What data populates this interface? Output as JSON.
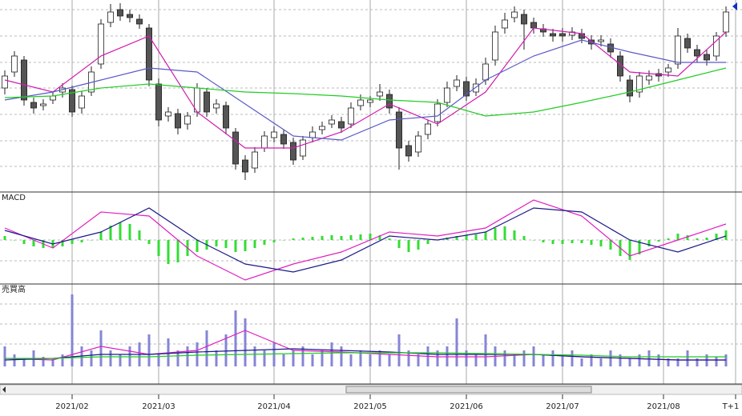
{
  "chart_data": [
    {
      "type": "candlestick",
      "xlim": [
        -0.5,
        76.5
      ],
      "ylim": [
        0,
        240
      ],
      "open": [
        130,
        150,
        165,
        112,
        108,
        115,
        125,
        128,
        105,
        125,
        160,
        212,
        228,
        222,
        216,
        205,
        135,
        95,
        98,
        85,
        100,
        125,
        105,
        108,
        75,
        40,
        30,
        55,
        68,
        72,
        62,
        45,
        68,
        78,
        85,
        88,
        85,
        108,
        112,
        120,
        122,
        100,
        58,
        50,
        72,
        88,
        112,
        132,
        138,
        125,
        140,
        165,
        205,
        218,
        222,
        212,
        204,
        198,
        198,
        196,
        198,
        190,
        188,
        185,
        170,
        140,
        125,
        140,
        148,
        150,
        160,
        192,
        178,
        172,
        170,
        200
      ],
      "high": [
        152,
        176,
        170,
        118,
        116,
        126,
        136,
        133,
        126,
        157,
        216,
        235,
        236,
        228,
        222,
        210,
        142,
        106,
        104,
        100,
        136,
        130,
        116,
        113,
        80,
        46,
        56,
        76,
        82,
        78,
        68,
        70,
        82,
        88,
        96,
        94,
        112,
        122,
        120,
        135,
        128,
        106,
        64,
        76,
        90,
        116,
        138,
        146,
        144,
        142,
        168,
        208,
        224,
        232,
        228,
        218,
        210,
        204,
        205,
        206,
        204,
        196,
        196,
        192,
        176,
        146,
        150,
        152,
        154,
        160,
        205,
        198,
        184,
        178,
        200,
        232
      ],
      "low": [
        122,
        144,
        108,
        98,
        102,
        110,
        118,
        94,
        98,
        120,
        154,
        206,
        214,
        212,
        204,
        132,
        82,
        88,
        72,
        78,
        94,
        94,
        98,
        72,
        28,
        15,
        24,
        50,
        62,
        54,
        34,
        40,
        62,
        72,
        80,
        74,
        80,
        102,
        106,
        114,
        98,
        28,
        38,
        44,
        66,
        82,
        106,
        126,
        114,
        120,
        134,
        158,
        198,
        212,
        178,
        198,
        194,
        188,
        188,
        190,
        186,
        178,
        182,
        168,
        138,
        112,
        118,
        134,
        138,
        144,
        154,
        174,
        162,
        158,
        164,
        194
      ],
      "close": [
        145,
        170,
        115,
        105,
        110,
        120,
        130,
        100,
        120,
        150,
        210,
        225,
        220,
        218,
        210,
        140,
        90,
        100,
        80,
        95,
        130,
        100,
        110,
        80,
        35,
        25,
        50,
        70,
        75,
        60,
        40,
        65,
        75,
        82,
        90,
        80,
        105,
        115,
        115,
        125,
        105,
        55,
        45,
        70,
        85,
        110,
        130,
        140,
        120,
        135,
        160,
        200,
        215,
        225,
        210,
        205,
        200,
        195,
        195,
        200,
        192,
        185,
        190,
        175,
        145,
        120,
        145,
        145,
        145,
        155,
        195,
        180,
        170,
        165,
        195,
        225
      ],
      "series": [
        {
          "color": "#d01cb0",
          "x": [
            0,
            5,
            10,
            15,
            20,
            25,
            30,
            35,
            40,
            45,
            50,
            55,
            60,
            65,
            70,
            75
          ],
          "values": [
            140,
            125,
            170,
            195,
            100,
            55,
            55,
            75,
            110,
            85,
            125,
            205,
            198,
            150,
            145,
            200
          ]
        },
        {
          "color": "#5a5ac8",
          "x": [
            0,
            5,
            10,
            15,
            20,
            25,
            30,
            35,
            40,
            45,
            50,
            55,
            60,
            65,
            70,
            75
          ],
          "values": [
            115,
            125,
            140,
            155,
            150,
            110,
            70,
            65,
            90,
            95,
            140,
            170,
            190,
            175,
            162,
            162
          ]
        },
        {
          "color": "#22cc22",
          "x": [
            0,
            5,
            10,
            15,
            20,
            25,
            30,
            35,
            40,
            45,
            50,
            55,
            60,
            65,
            70,
            75
          ],
          "values": [
            118,
            120,
            130,
            135,
            130,
            125,
            123,
            120,
            115,
            112,
            95,
            100,
            112,
            125,
            140,
            155
          ]
        }
      ]
    },
    {
      "type": "combo",
      "title": "MACD",
      "xlim": [
        -0.5,
        76.5
      ],
      "ylim": [
        -55,
        60
      ],
      "bars": {
        "color": "#33dd33",
        "values": [
          5,
          0,
          -5,
          -8,
          -10,
          -10,
          -8,
          -5,
          -3,
          0,
          10,
          18,
          22,
          20,
          12,
          -5,
          -20,
          -30,
          -28,
          -20,
          -15,
          -12,
          -8,
          -10,
          -15,
          -14,
          -10,
          -6,
          -3,
          0,
          2,
          3,
          4,
          5,
          6,
          5,
          6,
          7,
          8,
          6,
          2,
          -10,
          -15,
          -12,
          -5,
          0,
          3,
          5,
          6,
          7,
          10,
          15,
          17,
          12,
          5,
          0,
          -3,
          -5,
          -5,
          -4,
          -4,
          -6,
          -8,
          -12,
          -20,
          -25,
          -18,
          -8,
          -2,
          2,
          8,
          6,
          2,
          3,
          8,
          12
        ]
      },
      "series": [
        {
          "color": "#e020c0",
          "x": [
            0,
            5,
            10,
            15,
            20,
            25,
            30,
            35,
            40,
            45,
            50,
            55,
            60,
            65,
            70,
            75
          ],
          "values": [
            15,
            -10,
            35,
            30,
            -20,
            -50,
            -30,
            -15,
            10,
            5,
            15,
            50,
            30,
            -20,
            0,
            20
          ]
        },
        {
          "color": "#1a1a8a",
          "x": [
            0,
            5,
            10,
            15,
            20,
            25,
            30,
            35,
            40,
            45,
            50,
            55,
            60,
            65,
            70,
            75
          ],
          "values": [
            12,
            -5,
            10,
            40,
            0,
            -30,
            -40,
            -25,
            5,
            0,
            10,
            40,
            35,
            0,
            -15,
            5
          ]
        }
      ]
    },
    {
      "type": "combo",
      "title": "売買高",
      "xlim": [
        -0.5,
        76.5
      ],
      "ylim": [
        0,
        110
      ],
      "bars": {
        "color": "#8585d6",
        "values": [
          25,
          15,
          10,
          20,
          12,
          10,
          15,
          90,
          25,
          20,
          45,
          20,
          15,
          25,
          30,
          40,
          15,
          35,
          20,
          25,
          30,
          45,
          20,
          40,
          70,
          60,
          25,
          20,
          30,
          15,
          20,
          25,
          15,
          20,
          30,
          25,
          15,
          20,
          15,
          20,
          15,
          40,
          20,
          15,
          25,
          20,
          25,
          60,
          20,
          15,
          40,
          25,
          20,
          15,
          20,
          25,
          15,
          20,
          15,
          20,
          10,
          15,
          10,
          20,
          15,
          10,
          15,
          20,
          15,
          10,
          10,
          20,
          10,
          15,
          12,
          15
        ]
      },
      "series": [
        {
          "color": "#e020c0",
          "x": [
            0,
            5,
            10,
            15,
            20,
            25,
            30,
            35,
            40,
            45,
            50,
            55,
            60,
            65,
            70,
            75
          ],
          "values": [
            10,
            8,
            25,
            15,
            20,
            45,
            20,
            18,
            15,
            12,
            12,
            15,
            12,
            10,
            8,
            8
          ]
        },
        {
          "color": "#1a1a8a",
          "x": [
            0,
            5,
            10,
            15,
            20,
            25,
            30,
            35,
            40,
            45,
            50,
            55,
            60,
            65,
            70,
            75
          ],
          "values": [
            8,
            10,
            15,
            15,
            18,
            20,
            22,
            20,
            18,
            15,
            15,
            15,
            12,
            10,
            8,
            8
          ]
        },
        {
          "color": "#22cc22",
          "x": [
            0,
            5,
            10,
            15,
            20,
            25,
            30,
            35,
            40,
            45,
            50,
            55,
            60,
            65,
            70,
            75
          ],
          "values": [
            10,
            10,
            12,
            12,
            14,
            15,
            16,
            17,
            17,
            17,
            16,
            15,
            14,
            12,
            12,
            12
          ]
        }
      ],
      "xticks": [
        {
          "value": 7,
          "label": "2021/02"
        },
        {
          "value": 16,
          "label": "2021/03"
        },
        {
          "value": 28,
          "label": "2021/04"
        },
        {
          "value": 38,
          "label": "2021/05"
        },
        {
          "value": 48,
          "label": "2021/06"
        },
        {
          "value": 58,
          "label": "2021/07"
        },
        {
          "value": 68.5,
          "label": "2021/08"
        },
        {
          "value": 76,
          "label": "T+1"
        }
      ]
    }
  ]
}
